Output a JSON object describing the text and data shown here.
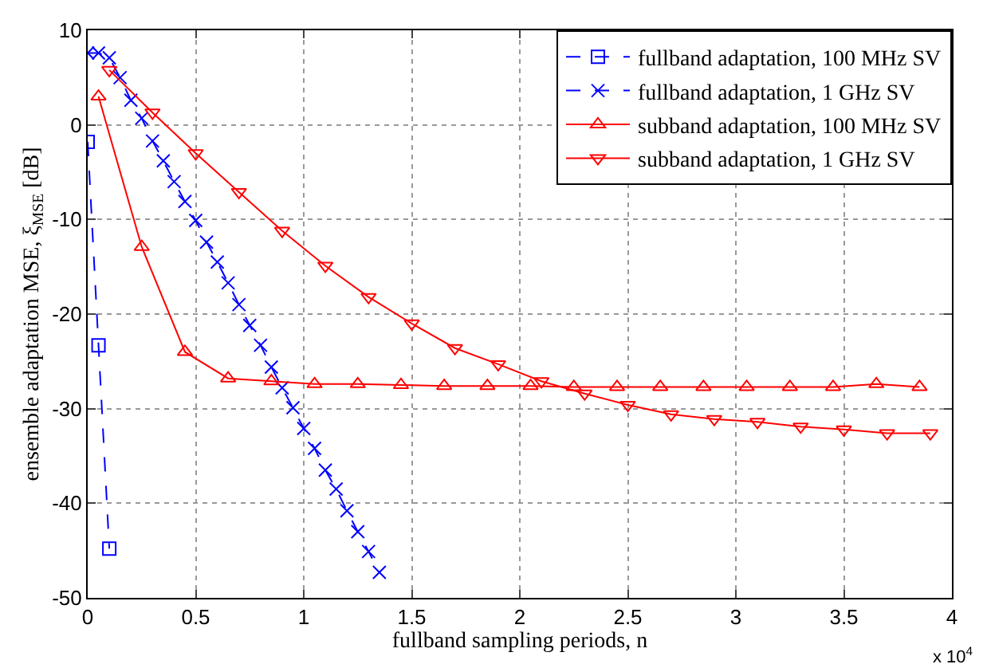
{
  "chart_data": {
    "type": "line",
    "xlabel": "fullband sampling periods, n",
    "ylabel": "ensemble adaptation MSE, ξ$_{MSE}$ [dB]",
    "annotations": [
      "x 10$^{4}$"
    ],
    "xlim": [
      0,
      4
    ],
    "xticks": [
      0,
      0.5,
      1,
      1.5,
      2,
      2.5,
      3,
      3.5,
      4
    ],
    "ylim": [
      -50,
      10
    ],
    "yticks": [
      -50,
      -40,
      -30,
      -20,
      -10,
      0,
      10
    ],
    "grid": true,
    "legend": "top right",
    "series": [
      {
        "name": "fullband adaptation, 100 MHz SV",
        "color": "#0000ff",
        "marker": "square",
        "line_style": "dashed",
        "x": [
          0,
          0.05,
          0.1
        ],
        "values": [
          -1.8,
          -23.3,
          -44.8
        ]
      },
      {
        "name": "fullband adaptation, 1 GHz SV",
        "color": "#0000ff",
        "marker": "cross",
        "line_style": "dashed",
        "x": [
          0,
          0.05,
          0.1,
          0.15,
          0.2,
          0.25,
          0.3,
          0.35,
          0.4,
          0.45,
          0.5,
          0.55,
          0.6,
          0.65,
          0.7,
          0.75,
          0.8,
          0.85,
          0.9,
          0.95,
          1.0,
          1.05,
          1.1,
          1.15,
          1.2,
          1.25,
          1.3,
          1.35
        ],
        "values": [
          7.6,
          7.6,
          7.1,
          5.0,
          2.6,
          0.7,
          -1.7,
          -3.8,
          -6.0,
          -8.1,
          -10.1,
          -12.4,
          -14.5,
          -16.7,
          -19.0,
          -21.2,
          -23.3,
          -25.6,
          -27.8,
          -29.9,
          -32.1,
          -34.2,
          -36.5,
          -38.5,
          -40.8,
          -43.0,
          -45.1,
          -47.3
        ]
      },
      {
        "name": "subband adaptation, 100 MHz SV",
        "color": "#ff0000",
        "marker": "triangle",
        "line_style": "solid",
        "x": [
          0.05,
          0.25,
          0.45,
          0.65,
          0.85,
          1.05,
          1.25,
          1.45,
          1.65,
          1.85,
          2.05,
          2.25,
          2.45,
          2.65,
          2.85,
          3.05,
          3.25,
          3.45,
          3.65,
          3.85
        ],
        "values": [
          3.0,
          -12.9,
          -24.0,
          -26.8,
          -27.1,
          -27.4,
          -27.4,
          -27.5,
          -27.6,
          -27.6,
          -27.6,
          -27.7,
          -27.7,
          -27.7,
          -27.7,
          -27.7,
          -27.7,
          -27.7,
          -27.4,
          -27.7
        ]
      },
      {
        "name": "subband adaptation, 1 GHz SV",
        "color": "#ff0000",
        "marker": "triangle-down",
        "line_style": "solid",
        "x": [
          0.1,
          0.3,
          0.5,
          0.7,
          0.9,
          1.1,
          1.3,
          1.5,
          1.7,
          1.9,
          2.1,
          2.3,
          2.5,
          2.7,
          2.9,
          3.1,
          3.3,
          3.5,
          3.7,
          3.9
        ],
        "values": [
          5.8,
          1.3,
          -3.0,
          -7.1,
          -11.2,
          -14.9,
          -18.2,
          -21.0,
          -23.6,
          -25.3,
          -27.1,
          -28.4,
          -29.6,
          -30.6,
          -31.1,
          -31.4,
          -31.9,
          -32.2,
          -32.6,
          -32.6
        ]
      }
    ]
  }
}
